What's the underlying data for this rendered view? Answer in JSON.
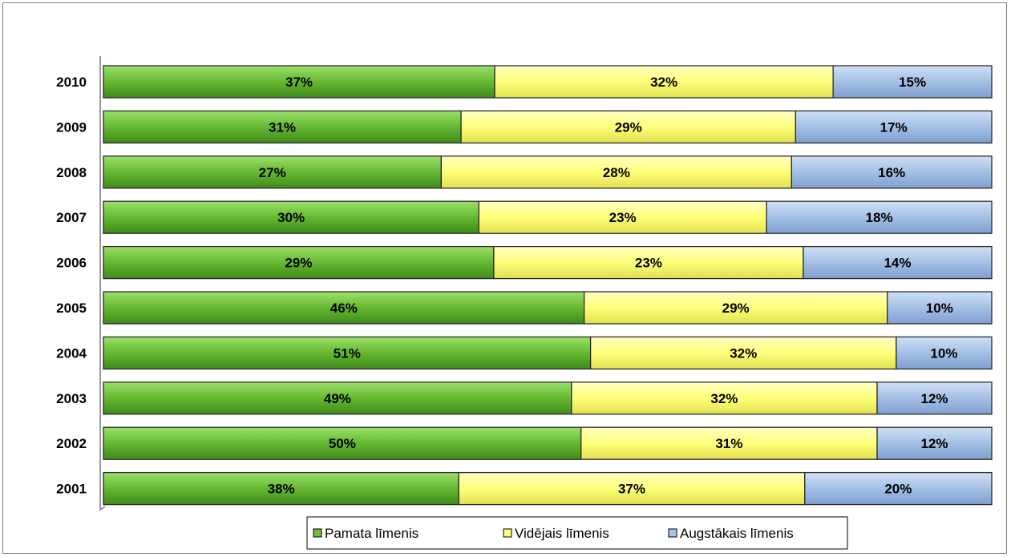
{
  "chart_data": {
    "type": "bar",
    "orientation": "horizontal",
    "stacked": true,
    "categories": [
      "2010",
      "2009",
      "2008",
      "2007",
      "2006",
      "2005",
      "2004",
      "2003",
      "2002",
      "2001"
    ],
    "series": [
      {
        "name": "Pamata līmenis",
        "color": "#6fbf3a",
        "values": [
          37,
          31,
          27,
          30,
          29,
          46,
          51,
          49,
          50,
          38
        ]
      },
      {
        "name": "Vidējais līmenis",
        "color": "#ffff80",
        "values": [
          32,
          29,
          28,
          23,
          23,
          29,
          32,
          32,
          31,
          37
        ]
      },
      {
        "name": "Augstākais līmenis",
        "color": "#a8c4e8",
        "values": [
          15,
          17,
          16,
          18,
          14,
          10,
          10,
          12,
          12,
          20
        ]
      }
    ],
    "value_suffix": "%",
    "title": "",
    "xlabel": "",
    "ylabel": "",
    "grid": false,
    "legend_position": "bottom"
  }
}
